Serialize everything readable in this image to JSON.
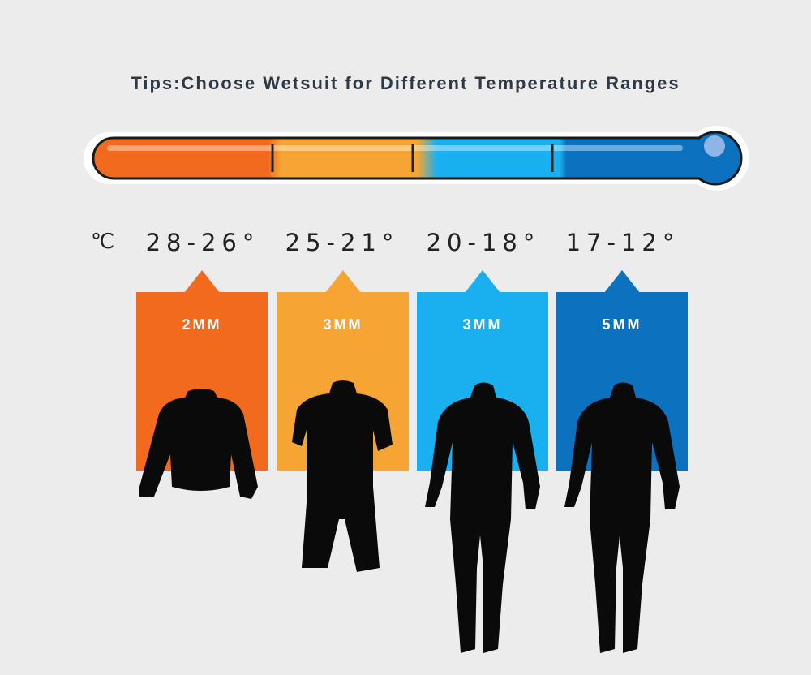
{
  "title": "Tips:Choose Wetsuit for Different Temperature Ranges",
  "unit": "℃",
  "colors": {
    "orange": "#f26a1e",
    "yellow": "#f6a535",
    "light_blue": "#1ab0ef",
    "blue": "#0c72bf",
    "background": "#ececec"
  },
  "ranges": [
    {
      "temp": "28-26°",
      "thickness": "2MM",
      "suit": "long-sleeve-jacket",
      "color": "#f26a1e"
    },
    {
      "temp": "25-21°",
      "thickness": "3MM",
      "suit": "shorty-wetsuit",
      "color": "#f6a535"
    },
    {
      "temp": "20-18°",
      "thickness": "3MM",
      "suit": "full-wetsuit",
      "color": "#1ab0ef"
    },
    {
      "temp": "17-12°",
      "thickness": "5MM",
      "suit": "full-wetsuit",
      "color": "#0c72bf"
    }
  ]
}
